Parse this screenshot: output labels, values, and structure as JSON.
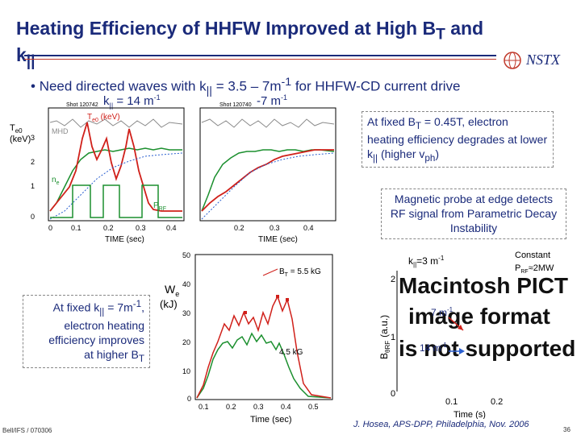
{
  "slide": {
    "title": "Heating Efficiency of HHFW Improved at High B",
    "title_sub": "T",
    "title_tail": " and k",
    "title_tail_sub": "||",
    "logo": "NSTX",
    "bullet": "Need directed waves with k",
    "bullet_sub": "||",
    "bullet_mid": " = 3.5 – 7m",
    "bullet_sup": "-1",
    "bullet_tail": " for HHFW-CD current drive"
  },
  "top_left_panel": {
    "header_left": "k",
    "header_left_sub": "||",
    "header_left_value": " = 14 m",
    "header_left_sup": "-1",
    "header_right": "-7 m",
    "header_right_sup": "-1",
    "shot_left": "Shot 120742",
    "shot_right": "Shot 120740",
    "ylabel_line1": "T",
    "ylabel_line1_sub": "e0",
    "ylabel_line2": "(keV)",
    "label_te0": "T",
    "label_te0_sub": "e0",
    "label_te0_unit": " (keV)",
    "label_mhd": "MHD",
    "label_ne": "n",
    "label_ne_sub": "e",
    "label_prf": "P",
    "label_prf_sub": "RF",
    "yticks": [
      "3",
      "2",
      "1",
      "0"
    ],
    "xticks_left": [
      "0",
      "0.1",
      "0.2",
      "0.3",
      "0.4"
    ],
    "xticks_right": [
      "0.2",
      "0.3",
      "0.4"
    ],
    "xlabel": "TIME (sec)"
  },
  "callouts": {
    "top_right": {
      "text1": "At fixed B",
      "text1_sub": "T",
      "text1_tail": " = 0.45T, electron heating efficiency degrades at lower k",
      "text1_sub2": "||",
      "text1_end": " (higher v",
      "text1_sub3": "ph",
      "text1_close": ")"
    },
    "mid_right": {
      "text": "Magnetic probe at edge detects RF signal from Parametric Decay Instability"
    },
    "bottom_left": {
      "line1": "At fixed k",
      "line1_sub": "||",
      "line1_tail": " = 7m",
      "line1_sup": "-1",
      "line1_end": ",",
      "line2": "electron heating",
      "line3": "efficiency improves",
      "line4": "at higher B",
      "line4_sub": "T"
    }
  },
  "bottom_middle_chart": {
    "ylabel": "W",
    "ylabel_sub": "e",
    "yunit": "(kJ)",
    "yticks": [
      "50",
      "40",
      "30",
      "20",
      "10",
      "0"
    ],
    "xticks": [
      "0.1",
      "0.2",
      "0.3",
      "0.4",
      "0.5"
    ],
    "xlabel": "Time (sec)",
    "legend_high": "B",
    "legend_high_sub": "T",
    "legend_high_tail": " = 5.5 kG",
    "legend_low": "4.5 kG"
  },
  "bottom_right_chart": {
    "ylabel": "B",
    "ylabel_sub": "θRF",
    "yunit": "(a.u.)",
    "yticks": [
      "2",
      "1",
      "0"
    ],
    "xticks": [
      "0.1",
      "0.2"
    ],
    "xlabel": "Time (s)",
    "label_k3": "k",
    "label_k3_sub": "||",
    "label_k3_tail": "=3 m",
    "label_k3_sup": "-1",
    "label_const": "Constant",
    "label_prf": "P",
    "label_prf_sub": "RF",
    "label_prf_tail": "≈2MW",
    "label_k7": "7 m",
    "label_k7_sup": "-1",
    "label_k14": "14 m",
    "label_k14_sup": "-1",
    "placeholder_line1": "Macintosh PICT",
    "placeholder_line2": "image format",
    "placeholder_line3": "is not supported"
  },
  "footer": {
    "left": "Bell/IFS / 070306",
    "center": "J. Hosea, APS-DPP, Philadelphia, Nov. 2006",
    "page": "36"
  },
  "colors": {
    "title": "#1a2a7a",
    "green": "#1b8f2e",
    "red": "#d0201a",
    "grey": "#8a8a8a",
    "blue": "#2a5fd0"
  }
}
